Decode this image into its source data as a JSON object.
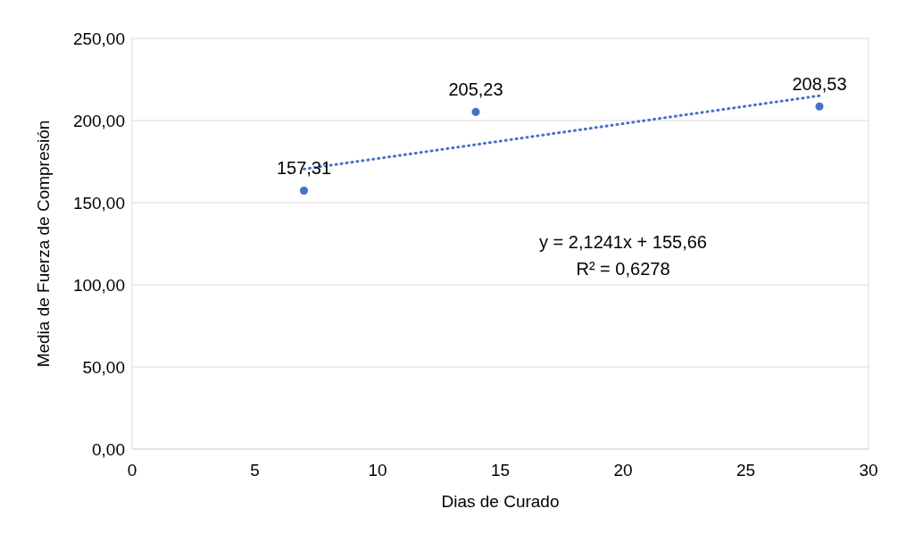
{
  "chart_data": {
    "type": "scatter",
    "xlabel": "Dias de Curado",
    "ylabel": "Media de Fuerza de Compresión",
    "x": [
      7,
      14,
      28
    ],
    "series": [
      {
        "color": "#4472c4",
        "values": [
          157.31,
          205.23,
          208.53
        ],
        "value_labels": [
          "157,31",
          "205,23",
          "208,53"
        ],
        "marker": "circle"
      },
      {
        "type": "line",
        "color": "#4472c4",
        "x": [
          7,
          28
        ],
        "values": [
          170.5,
          215.1
        ],
        "line_style": "dotted",
        "marker": "none"
      }
    ],
    "annotations": [
      "y = 2,1241x + 155,66",
      "R² = 0,6278"
    ],
    "xlim": [
      0,
      30
    ],
    "xticks": [
      0,
      5,
      10,
      15,
      20,
      25,
      30
    ],
    "ylim": [
      0,
      250
    ],
    "yticks": [
      {
        "value": 0,
        "label": "0,00"
      },
      {
        "value": 50,
        "label": "50,00"
      },
      {
        "value": 100,
        "label": "100,00"
      },
      {
        "value": 150,
        "label": "150,00"
      },
      {
        "value": 200,
        "label": "200,00"
      },
      {
        "value": 250,
        "label": "250,00"
      }
    ],
    "grid": true
  }
}
